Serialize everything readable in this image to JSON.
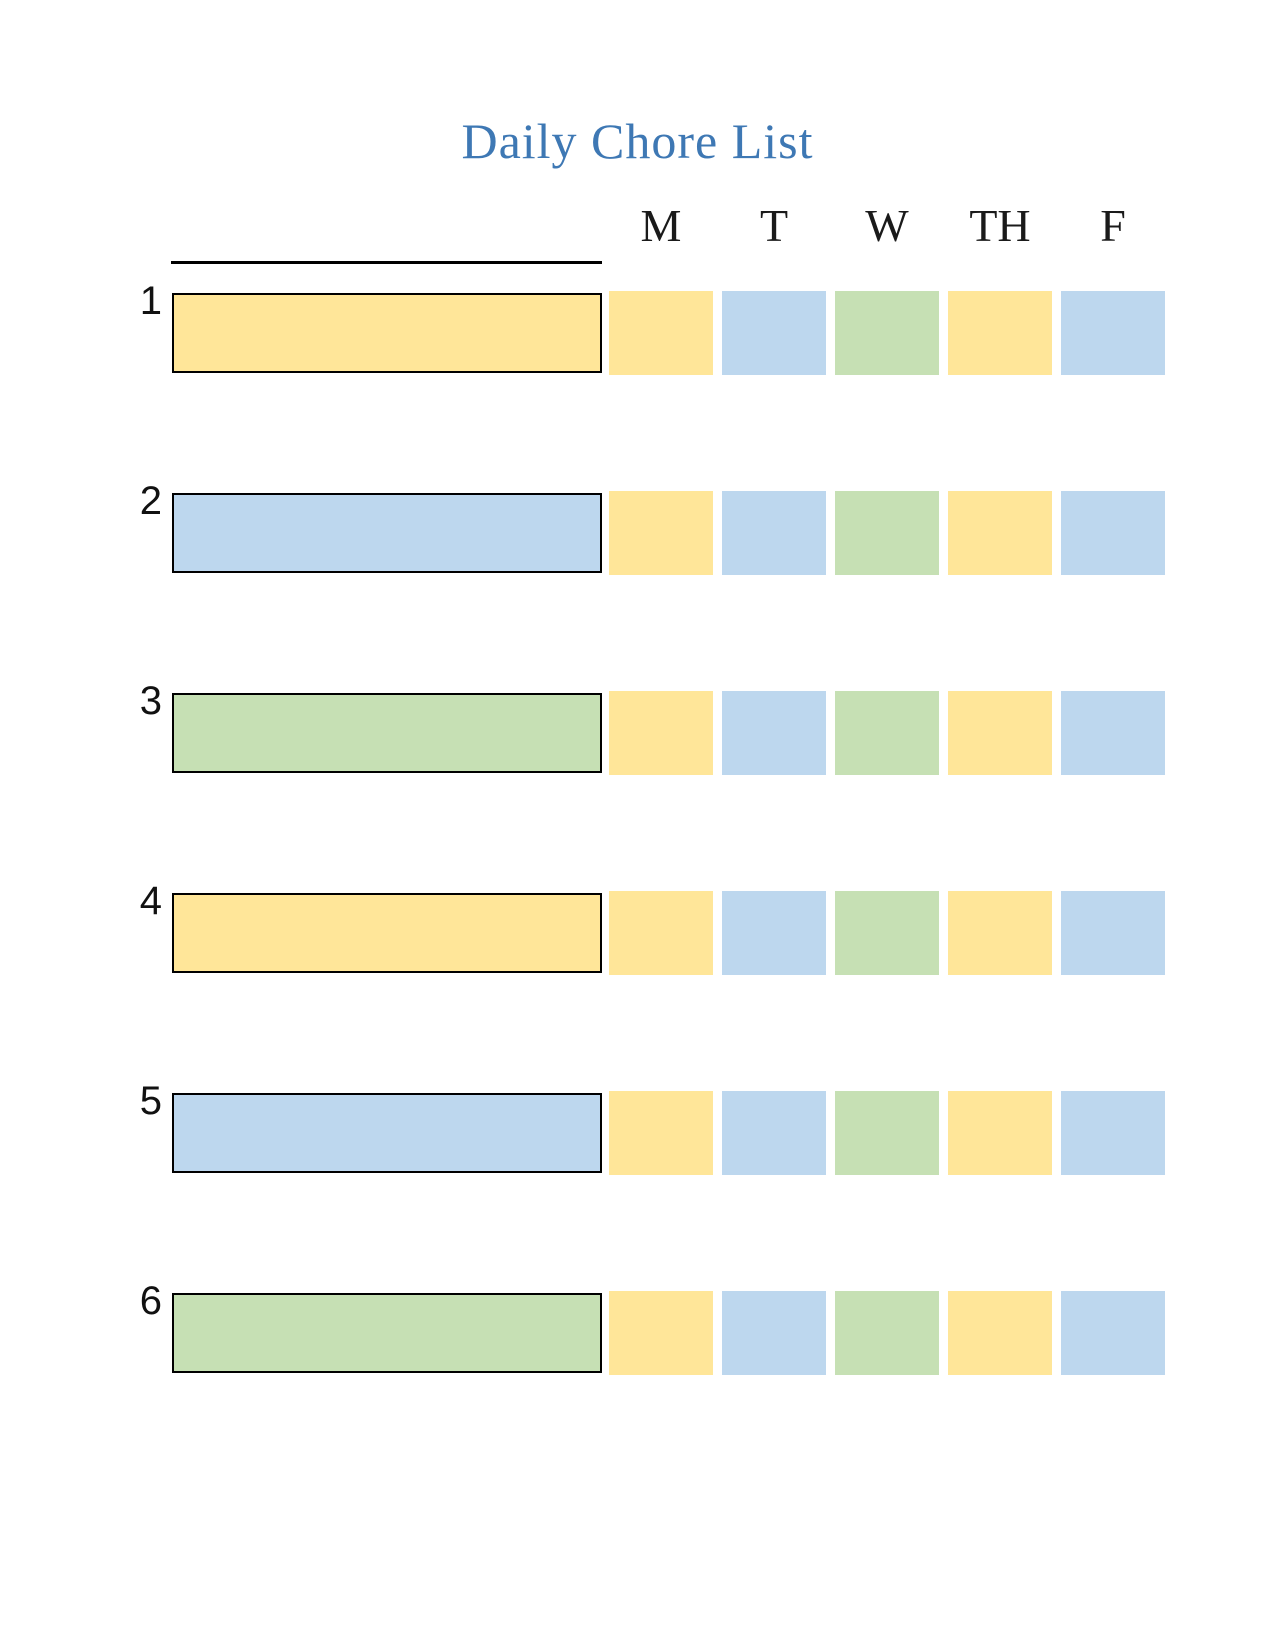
{
  "title": {
    "text": "Daily Chore List",
    "color": "#3E78B4"
  },
  "header": {
    "days": [
      "M",
      "T",
      "W",
      "TH",
      "F"
    ],
    "name_line_value": ""
  },
  "palette": {
    "yellow": "#FFE699",
    "blue": "#BDD7EE",
    "green": "#C6E0B4"
  },
  "rows": [
    {
      "number": "1",
      "chore_value": "",
      "box_color": "yellow",
      "day_cells": [
        "yellow",
        "blue",
        "green",
        "yellow",
        "blue"
      ]
    },
    {
      "number": "2",
      "chore_value": "",
      "box_color": "blue",
      "day_cells": [
        "yellow",
        "blue",
        "green",
        "yellow",
        "blue"
      ]
    },
    {
      "number": "3",
      "chore_value": "",
      "box_color": "green",
      "day_cells": [
        "yellow",
        "blue",
        "green",
        "yellow",
        "blue"
      ]
    },
    {
      "number": "4",
      "chore_value": "",
      "box_color": "yellow",
      "day_cells": [
        "yellow",
        "blue",
        "green",
        "yellow",
        "blue"
      ]
    },
    {
      "number": "5",
      "chore_value": "",
      "box_color": "blue",
      "day_cells": [
        "yellow",
        "blue",
        "green",
        "yellow",
        "blue"
      ]
    },
    {
      "number": "6",
      "chore_value": "",
      "box_color": "green",
      "day_cells": [
        "yellow",
        "blue",
        "green",
        "yellow",
        "blue"
      ]
    }
  ]
}
